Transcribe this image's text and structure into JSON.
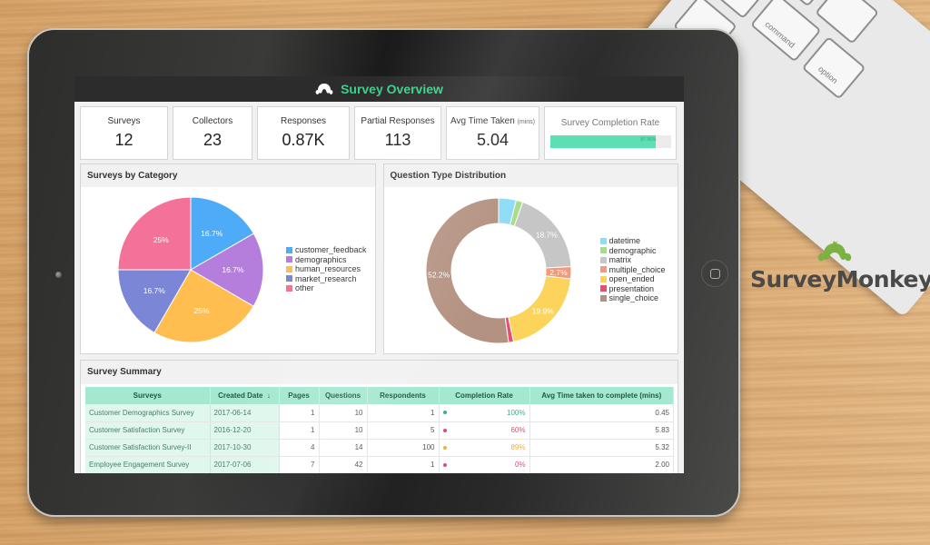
{
  "app": {
    "title": "Survey Overview",
    "header_icon": "surveymonkey-logo-icon",
    "accent_color": "#3ecf8e"
  },
  "kpis": [
    {
      "label": "Surveys",
      "value": "12"
    },
    {
      "label": "Collectors",
      "value": "23"
    },
    {
      "label": "Responses",
      "value": "0.87K"
    },
    {
      "label": "Partial Responses",
      "value": "113"
    },
    {
      "label": "Avg Time Taken",
      "unit": "(mins)",
      "value": "5.04"
    }
  ],
  "completion_rate": {
    "label": "Survey Completion Rate",
    "value_text": "87.56%",
    "percent": 87.56
  },
  "charts": {
    "category": {
      "title": "Surveys by Category",
      "legend": [
        "customer_feedback",
        "demographics",
        "human_resources",
        "market_research",
        "other"
      ]
    },
    "question_type": {
      "title": "Question Type Distribution",
      "legend": [
        "datetime",
        "demographic",
        "matrix",
        "multiple_choice",
        "open_ended",
        "presentation",
        "single_choice"
      ]
    }
  },
  "chart_data": [
    {
      "type": "pie",
      "title": "Surveys by Category",
      "categories": [
        "customer_feedback",
        "demographics",
        "human_resources",
        "market_research",
        "other"
      ],
      "values": [
        16.7,
        16.7,
        25,
        16.7,
        25
      ],
      "labels": [
        "16.7%",
        "16.7%",
        "25%",
        "16.7%",
        "25%"
      ],
      "colors": [
        "#4dabf7",
        "#b57edc",
        "#ffbe4f",
        "#7b86d6",
        "#f4719a"
      ],
      "legend_position": "right"
    },
    {
      "type": "pie",
      "subtype": "donut",
      "title": "Question Type Distribution",
      "categories": [
        "datetime",
        "demographic",
        "matrix",
        "multiple_choice",
        "open_ended",
        "presentation",
        "single_choice"
      ],
      "values": [
        3.9,
        1.5,
        18.7,
        2.7,
        19.9,
        1.1,
        52.2
      ],
      "labels": [
        "",
        "",
        "18.7%",
        "2.7%",
        "19.9%",
        "",
        "52.2%"
      ],
      "colors": [
        "#8fdcf5",
        "#a8dc8a",
        "#c6c6c6",
        "#f39a7a",
        "#fcd45c",
        "#e4506e",
        "#b49281"
      ],
      "legend_position": "right"
    }
  ],
  "summary": {
    "title": "Survey Summary",
    "columns": [
      "Surveys",
      "Created Date",
      "Pages",
      "Questions",
      "Respondents",
      "Completion Rate",
      "Avg Time taken to complete (mins)"
    ],
    "sort_indicator": "↓",
    "rows": [
      {
        "survey": "Customer Demographics Survey",
        "created": "2017-06-14",
        "pages": "1",
        "questions": "10",
        "respondents": "1",
        "rate": "100%",
        "rate_color": "#3bb08a",
        "avg_time": "0.45"
      },
      {
        "survey": "Customer Satisfaction Survey",
        "created": "2016-12-20",
        "pages": "1",
        "questions": "10",
        "respondents": "5",
        "rate": "60%",
        "rate_color": "#d9506e",
        "avg_time": "5.83"
      },
      {
        "survey": "Customer Satisfaction Survey-II",
        "created": "2017-10-30",
        "pages": "4",
        "questions": "14",
        "respondents": "100",
        "rate": "89%",
        "rate_color": "#f0b040",
        "avg_time": "5.32"
      },
      {
        "survey": "Employee Engagement Survey",
        "created": "2017-07-06",
        "pages": "7",
        "questions": "42",
        "respondents": "1",
        "rate": "0%",
        "rate_color": "#d9506e",
        "avg_time": "2.00"
      }
    ]
  },
  "brand": {
    "name": "SurveyMonkey",
    "icon": "monkey-logo-icon",
    "icon_color": "#7bb241"
  },
  "keyboard": {
    "keys": [
      "command",
      "option"
    ]
  }
}
